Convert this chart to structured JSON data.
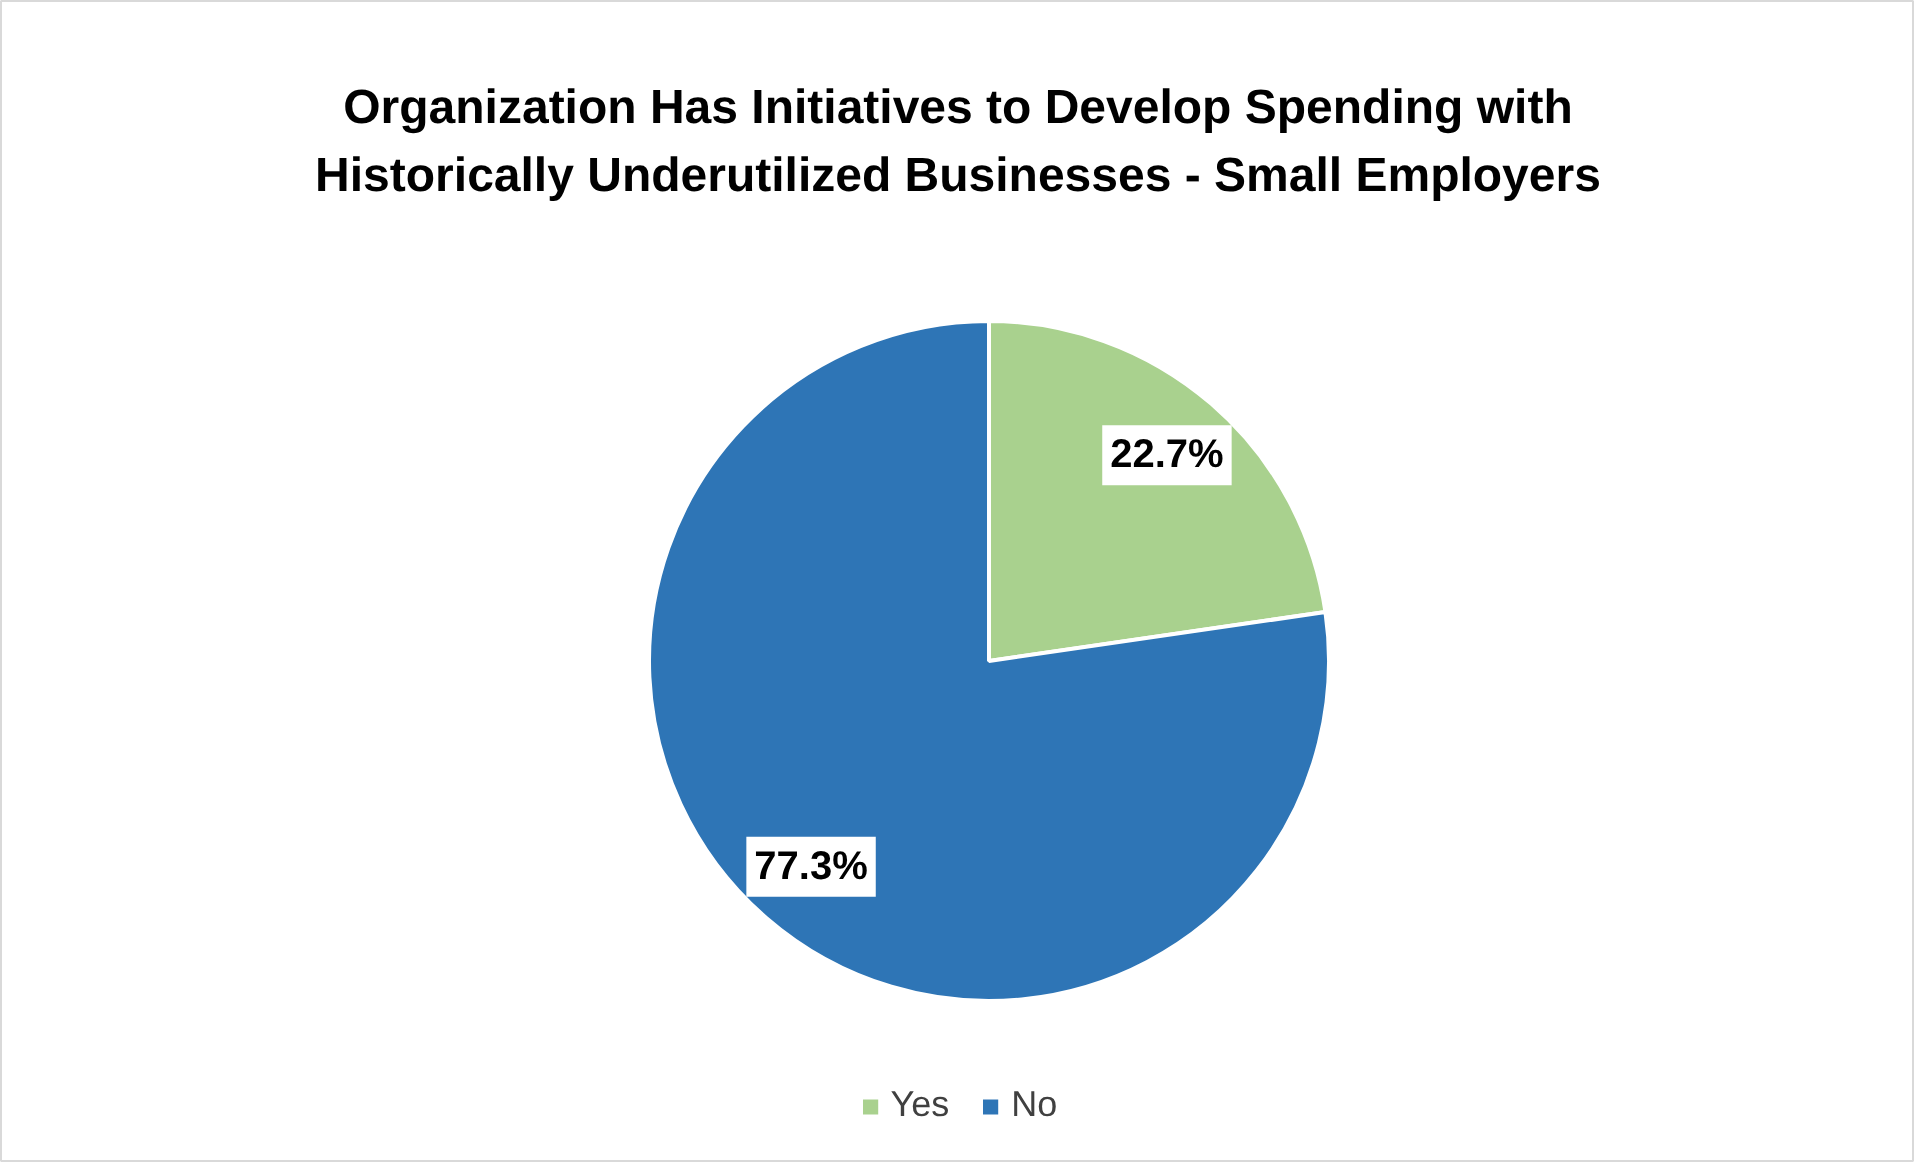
{
  "chart_data": {
    "type": "pie",
    "title": "Organization Has Initiatives to Develop Spending with Historically Underutilized Businesses - Small Employers",
    "categories": [
      "Yes",
      "No"
    ],
    "values": [
      22.7,
      77.3
    ],
    "colors": [
      "#a9d18e",
      "#2e75b6"
    ],
    "value_labels": [
      "22.7%",
      "77.3%"
    ],
    "legend": "bottom"
  }
}
